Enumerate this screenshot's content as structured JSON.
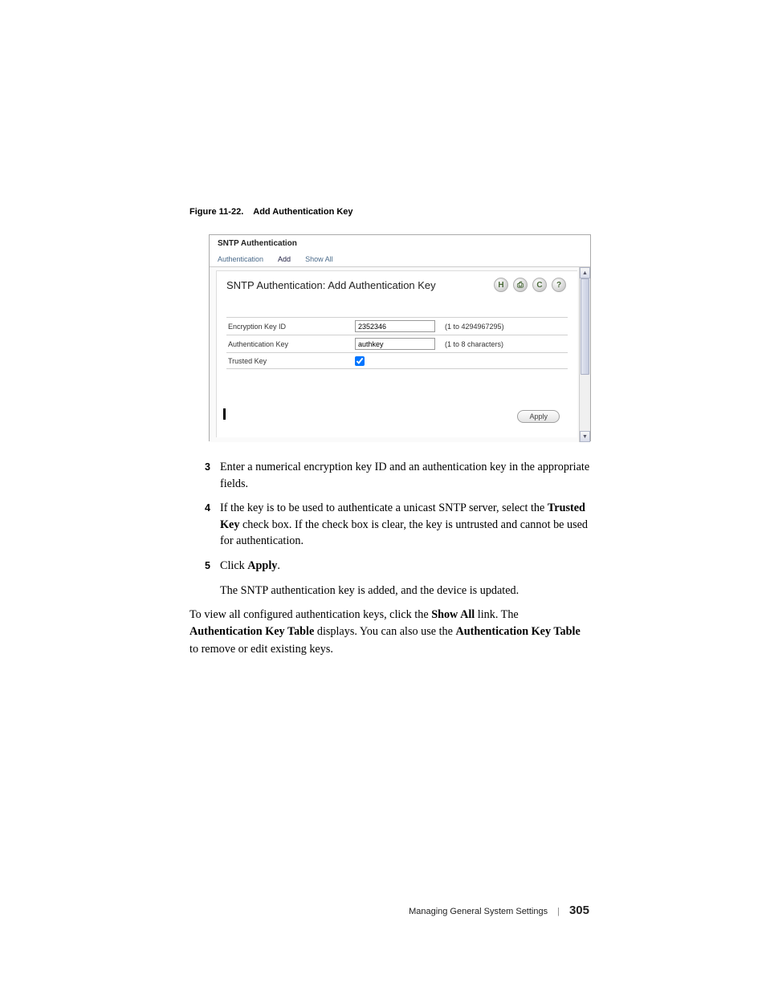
{
  "figure": {
    "number": "Figure 11-22.",
    "title": "Add Authentication Key"
  },
  "screenshot": {
    "tab_section_title": "SNTP Authentication",
    "tabs": {
      "authentication": "Authentication",
      "add": "Add",
      "show_all": "Show All"
    },
    "panel_heading": "SNTP Authentication: Add Authentication Key",
    "icons": {
      "save": "H",
      "print": "⎙",
      "refresh": "C",
      "help": "?"
    },
    "form": {
      "encryption_key_id": {
        "label": "Encryption Key ID",
        "value": "2352346",
        "hint": "(1 to 4294967295)"
      },
      "authentication_key": {
        "label": "Authentication Key",
        "value": "authkey",
        "hint": "(1 to 8 characters)"
      },
      "trusted_key": {
        "label": "Trusted Key",
        "checked": true
      }
    },
    "apply_label": "Apply",
    "scroll_up": "▲",
    "scroll_down": "▼"
  },
  "steps": {
    "s3": {
      "num": "3",
      "text": "Enter a numerical encryption key ID and an authentication key in the appropriate fields."
    },
    "s4": {
      "num": "4",
      "pre": "If the key is to be used to authenticate a unicast SNTP server, select the ",
      "bold": "Trusted Key",
      "post": " check box. If the check box is clear, the key is untrusted and cannot be used for authentication."
    },
    "s5": {
      "num": "5",
      "pre": "Click ",
      "bold": "Apply",
      "post": "."
    },
    "s5_sub": "The SNTP authentication key is added, and the device is updated."
  },
  "paragraph": {
    "p1": "To view all configured authentication keys, click the ",
    "b1": "Show All",
    "p2": " link. The ",
    "b2": "Authentication Key Table",
    "p3": " displays. You can also use the ",
    "b3": "Authentication Key Table",
    "p4": " to remove or edit existing keys."
  },
  "footer": {
    "section": "Managing General System Settings",
    "page": "305"
  }
}
